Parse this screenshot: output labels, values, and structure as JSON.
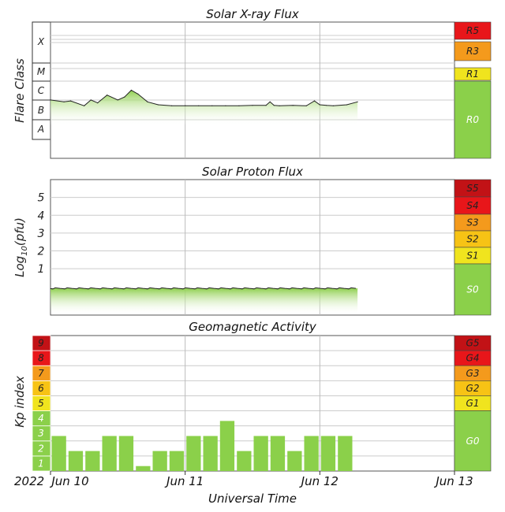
{
  "chart_data": [
    {
      "type": "area",
      "title": "Solar X-ray Flux",
      "ylabel": "Flare Class",
      "scale": "log",
      "ylim": [
        -9,
        -2
      ],
      "flare_classes": [
        "X",
        "M",
        "C",
        "B",
        "A"
      ],
      "radio_scale": [
        "R5",
        "R3",
        "R1",
        "R0"
      ],
      "x_days": [
        0,
        0.1,
        0.15,
        0.25,
        0.3,
        0.35,
        0.42,
        0.5,
        0.55,
        0.6,
        0.65,
        0.72,
        0.8,
        0.9,
        1.0,
        1.1,
        1.2,
        1.3,
        1.4,
        1.5,
        1.6,
        1.63,
        1.66,
        1.7,
        1.8,
        1.9,
        1.96,
        2.0,
        2.05,
        2.1,
        2.2,
        2.28
      ],
      "values": [
        -6.0,
        -6.1,
        -6.05,
        -6.3,
        -6.0,
        -6.15,
        -5.75,
        -6.0,
        -5.85,
        -5.5,
        -5.7,
        -6.1,
        -6.25,
        -6.3,
        -6.3,
        -6.3,
        -6.3,
        -6.3,
        -6.3,
        -6.28,
        -6.28,
        -6.1,
        -6.28,
        -6.3,
        -6.28,
        -6.3,
        -6.05,
        -6.25,
        -6.28,
        -6.3,
        -6.25,
        -6.1
      ]
    },
    {
      "type": "area",
      "title": "Solar Proton Flux",
      "ylabel": "Log10(pfu)",
      "ylim": [
        -1.6,
        6.0
      ],
      "yticks": [
        "1",
        "2",
        "3",
        "4",
        "5"
      ],
      "solar_radiation_scale": [
        "S5",
        "S4",
        "S3",
        "S2",
        "S1",
        "S0"
      ],
      "level": -0.1
    },
    {
      "type": "bar",
      "title": "Geomagnetic Activity",
      "ylabel": "Kp index",
      "ylim": [
        0,
        9
      ],
      "kp_levels": [
        "1",
        "2",
        "3",
        "4",
        "5",
        "6",
        "7",
        "8",
        "9"
      ],
      "geomagnetic_scale": [
        "G5",
        "G4",
        "G3",
        "G2",
        "G1",
        "G0"
      ],
      "bar_interval_hours": 3,
      "values": [
        2.33,
        1.33,
        1.33,
        2.33,
        2.33,
        0.33,
        1.33,
        1.33,
        2.33,
        2.33,
        3.33,
        1.33,
        2.33,
        2.33,
        1.33,
        2.33,
        2.33,
        2.33
      ]
    }
  ],
  "x_axis": {
    "label": "Universal Time",
    "year": "2022",
    "ticks": [
      "Jun 10",
      "Jun 11",
      "Jun 12",
      "Jun 13"
    ]
  },
  "colors": {
    "data_green": "#8fcf4f",
    "g0_green": "#8bd04a",
    "yellow": "#f0e41e",
    "gold": "#f7c315",
    "orange": "#f49a1c",
    "red": "#e8161a",
    "dark_red": "#c21216"
  }
}
